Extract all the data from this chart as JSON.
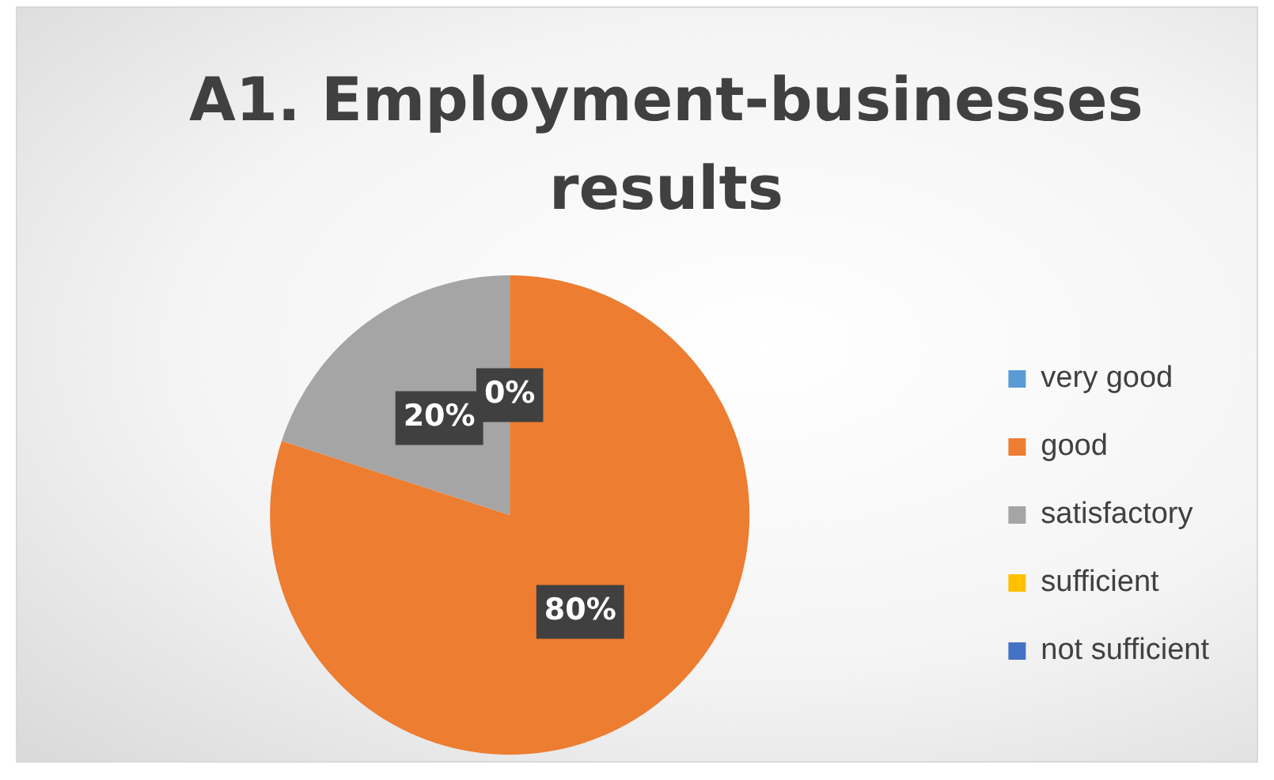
{
  "chart_data": {
    "type": "pie",
    "title": "A1. Employment-businesses results",
    "categories": [
      "very good",
      "good",
      "satisfactory",
      "sufficient",
      "not sufficient"
    ],
    "values": [
      0,
      80,
      20,
      0,
      0
    ],
    "colors": [
      "#5b9bd5",
      "#ed7d31",
      "#a5a5a5",
      "#ffc000",
      "#4472c4"
    ],
    "value_labels": [
      "0%",
      "80%",
      "20%",
      null,
      null
    ],
    "legend": "right"
  }
}
